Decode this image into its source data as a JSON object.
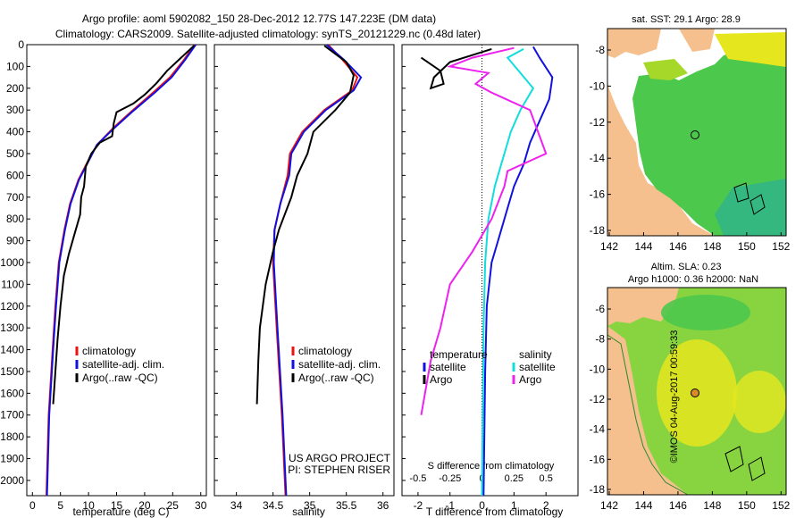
{
  "header": {
    "title1": "Argo profile: aoml 5902082_150 28-Dec-2012 12.77S 147.223E (DM data)",
    "title2": "Climatology: CARS2009. Satellite-adjusted climatology: synTS_20121229.nc (0.48d later)"
  },
  "colors": {
    "clim": "#ee1111",
    "sat": "#1111dd",
    "argo": "#000000",
    "magenta": "#ee22ee",
    "cyan": "#11dddd",
    "land": "#f5c08e",
    "sea_green": "#4cc84c",
    "sea_yellow": "#e6e61e"
  },
  "chart_data": [
    {
      "type": "line",
      "name": "temperature",
      "xlabel": "temperature (deg C)",
      "xlim": [
        -1,
        31
      ],
      "ylim": [
        2070,
        0
      ],
      "xticks": [
        0,
        5,
        10,
        15,
        20,
        25,
        30
      ],
      "yticks": [
        0,
        100,
        200,
        300,
        400,
        500,
        600,
        700,
        800,
        900,
        1000,
        1100,
        1200,
        1300,
        1400,
        1500,
        1600,
        1700,
        1800,
        1900,
        2000
      ],
      "legend": [
        "climatology",
        "satellite-adj. clim.",
        "Argo(..raw -QC)"
      ],
      "series": [
        {
          "name": "climatology",
          "color": "clim",
          "x": [
            28.9,
            27,
            24.5,
            21.5,
            17.5,
            14.5,
            11.5,
            9.8,
            8.2,
            6.7,
            5.7,
            4.7,
            4.1,
            3.6,
            2.9,
            2.5
          ],
          "y": [
            0,
            70,
            150,
            220,
            310,
            380,
            460,
            540,
            620,
            730,
            850,
            1000,
            1200,
            1400,
            1700,
            2070
          ]
        },
        {
          "name": "satellite-adj. clim.",
          "color": "sat",
          "x": [
            29.1,
            27.2,
            24.8,
            21.8,
            17.7,
            14.7,
            11.5,
            9.9,
            8.3,
            6.8,
            5.8,
            4.8,
            4.2,
            3.7,
            3.0,
            2.6
          ],
          "y": [
            0,
            70,
            150,
            220,
            310,
            380,
            460,
            540,
            620,
            730,
            850,
            1000,
            1200,
            1400,
            1700,
            2070
          ]
        },
        {
          "name": "Argo(..raw -QC)",
          "color": "argo",
          "x": [
            28.8,
            26.5,
            24,
            22,
            20,
            18,
            15,
            14.5,
            14.2,
            12,
            10.5,
            9.5,
            9.2,
            8.7,
            8.5,
            7.5,
            6.5,
            5.6,
            5,
            4.5,
            4.1,
            3.7
          ],
          "y": [
            5,
            60,
            120,
            180,
            230,
            270,
            310,
            360,
            420,
            450,
            500,
            560,
            650,
            700,
            780,
            870,
            960,
            1060,
            1200,
            1350,
            1500,
            1650
          ]
        }
      ]
    },
    {
      "type": "line",
      "name": "salinity",
      "xlabel": "salinity",
      "xlim": [
        33.7,
        36.15
      ],
      "ylim": [
        2070,
        0
      ],
      "xticks": [
        34,
        34.5,
        35,
        35.5,
        36
      ],
      "legend": [
        "climatology",
        "satellite-adj. clim.",
        "Argo(..raw -QC)"
      ],
      "annotation": [
        "US ARGO PROJECT",
        "PI: STEPHEN RISER"
      ],
      "series": [
        {
          "name": "climatology",
          "color": "clim",
          "x": [
            35.25,
            35.45,
            35.65,
            35.58,
            35.2,
            34.9,
            34.73,
            34.7,
            34.6,
            34.52,
            34.5,
            34.55,
            34.62,
            34.67
          ],
          "y": [
            0,
            70,
            150,
            210,
            300,
            400,
            500,
            600,
            730,
            850,
            1000,
            1300,
            1700,
            2070
          ]
        },
        {
          "name": "satellite-adj. clim.",
          "color": "sat",
          "x": [
            35.23,
            35.47,
            35.7,
            35.6,
            35.22,
            34.92,
            34.75,
            34.72,
            34.6,
            34.52,
            34.51,
            34.56,
            34.63,
            34.68
          ],
          "y": [
            0,
            70,
            150,
            210,
            300,
            400,
            500,
            600,
            730,
            850,
            1000,
            1300,
            1700,
            2070
          ]
        },
        {
          "name": "Argo(..raw -QC)",
          "color": "argo",
          "x": [
            35.2,
            35.5,
            35.6,
            35.55,
            35.35,
            35.05,
            34.97,
            34.83,
            34.75,
            34.58,
            34.5,
            34.4,
            34.32,
            34.3,
            34.28
          ],
          "y": [
            5,
            80,
            140,
            220,
            300,
            400,
            500,
            600,
            700,
            850,
            950,
            1100,
            1300,
            1450,
            1650
          ]
        }
      ]
    },
    {
      "type": "line",
      "name": "difference",
      "xlabel_top": "S difference from climatology",
      "xlabel": "T difference from climatology",
      "xlim": [
        -2.5,
        3
      ],
      "ylim": [
        2070,
        0
      ],
      "xticks_t": [
        -2,
        -1,
        0,
        1,
        2
      ],
      "xticks_t_labels": [
        "-2",
        "-1",
        "0",
        "1",
        "2"
      ],
      "xticks_s": [
        -0.5,
        -0.25,
        0,
        0.25,
        0.5
      ],
      "xticks_s_labels": [
        "-0.5",
        "-0.25",
        "0",
        "0.25",
        "0.5"
      ],
      "legend": [
        "temperature",
        "satellite",
        "Argo",
        "salinity",
        "satellite",
        "Argo"
      ],
      "series": [
        {
          "name": "T satellite",
          "color": "sat",
          "x": [
            1.6,
            1.8,
            2.2,
            2.1,
            1.8,
            1.5,
            1.3,
            1.0,
            0.8,
            0.5,
            0.3,
            0.15,
            0.1,
            0.05
          ],
          "y": [
            10,
            60,
            150,
            250,
            350,
            450,
            550,
            650,
            750,
            900,
            1000,
            1200,
            1500,
            2070
          ]
        },
        {
          "name": "S satellite",
          "color": "cyan",
          "x": [
            1.3,
            0.8,
            1.6,
            1.2,
            0.9,
            0.6,
            0.4,
            0.2,
            0.1,
            0.05,
            0.0
          ],
          "y": [
            20,
            60,
            200,
            300,
            400,
            550,
            650,
            800,
            1000,
            1300,
            2070
          ]
        },
        {
          "name": "T Argo",
          "color": "argo",
          "x": [
            0.3,
            -1.0,
            -1.5,
            -1.6,
            -1.2,
            -1.3,
            -1.9
          ],
          "y": [
            20,
            80,
            150,
            200,
            180,
            120,
            60
          ]
        },
        {
          "name": "S Argo",
          "color": "magenta",
          "x": [
            1.0,
            -0.3,
            -1.0,
            0.2,
            -0.2,
            0.3,
            1.5,
            2.0,
            0.8,
            0.7,
            0.3,
            -0.3,
            -1.0,
            -1.3,
            -1.6,
            -1.9
          ],
          "y": [
            15,
            60,
            100,
            130,
            180,
            220,
            300,
            500,
            580,
            650,
            800,
            950,
            1100,
            1300,
            1450,
            1700
          ]
        }
      ]
    }
  ],
  "maps": {
    "top": {
      "title": "sat. SST: 29.1 Argo: 28.9",
      "xticks": [
        "142",
        "144",
        "146",
        "148",
        "150",
        "152"
      ],
      "yticks": [
        "-8",
        "-10",
        "-12",
        "-14",
        "-16",
        "-18"
      ]
    },
    "bottom": {
      "title1": "Altim. SLA: 0.23",
      "title2": "Argo h1000: 0.36 h2000: NaN",
      "xticks": [
        "142",
        "144",
        "146",
        "148",
        "150",
        "152"
      ],
      "yticks": [
        "-6",
        "-8",
        "-10",
        "-12",
        "-14",
        "-16",
        "-18"
      ]
    },
    "float_lon": 147.223,
    "float_lat": -12.77
  },
  "footer": "©IMOS 04-Aug-2017 00:59:33"
}
